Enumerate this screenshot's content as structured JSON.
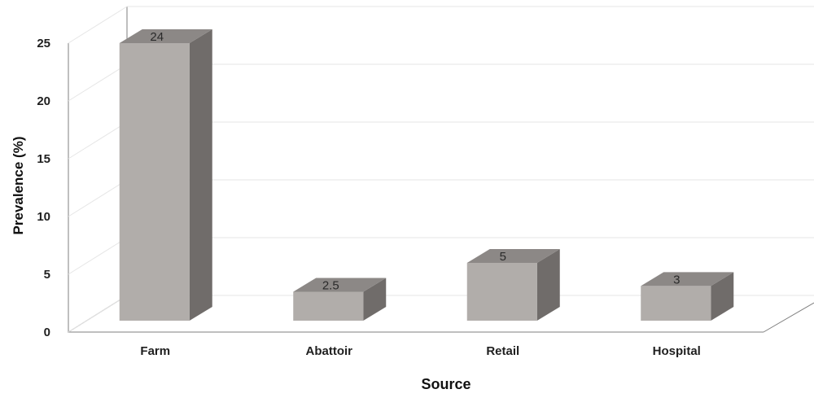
{
  "chart_data": {
    "type": "bar",
    "style": "3d",
    "categories": [
      "Farm",
      "Abattoir",
      "Retail",
      "Hospital"
    ],
    "values": [
      24,
      2.5,
      5,
      3
    ],
    "data_labels": [
      "24",
      "2.5",
      "5",
      "3"
    ],
    "title": "",
    "xlabel": "Source",
    "ylabel": "Prevalence (%)",
    "ylim": [
      0,
      25
    ],
    "yticks": [
      "0",
      "5",
      "10",
      "15",
      "20",
      "25"
    ],
    "grid": true,
    "legend": "none",
    "colors": {
      "bar_front": "#b1adaa",
      "bar_side": "#706c6a",
      "bar_top": "#8c8886",
      "frame": "#7f7f7f",
      "grid": "#e6e6e6"
    }
  }
}
